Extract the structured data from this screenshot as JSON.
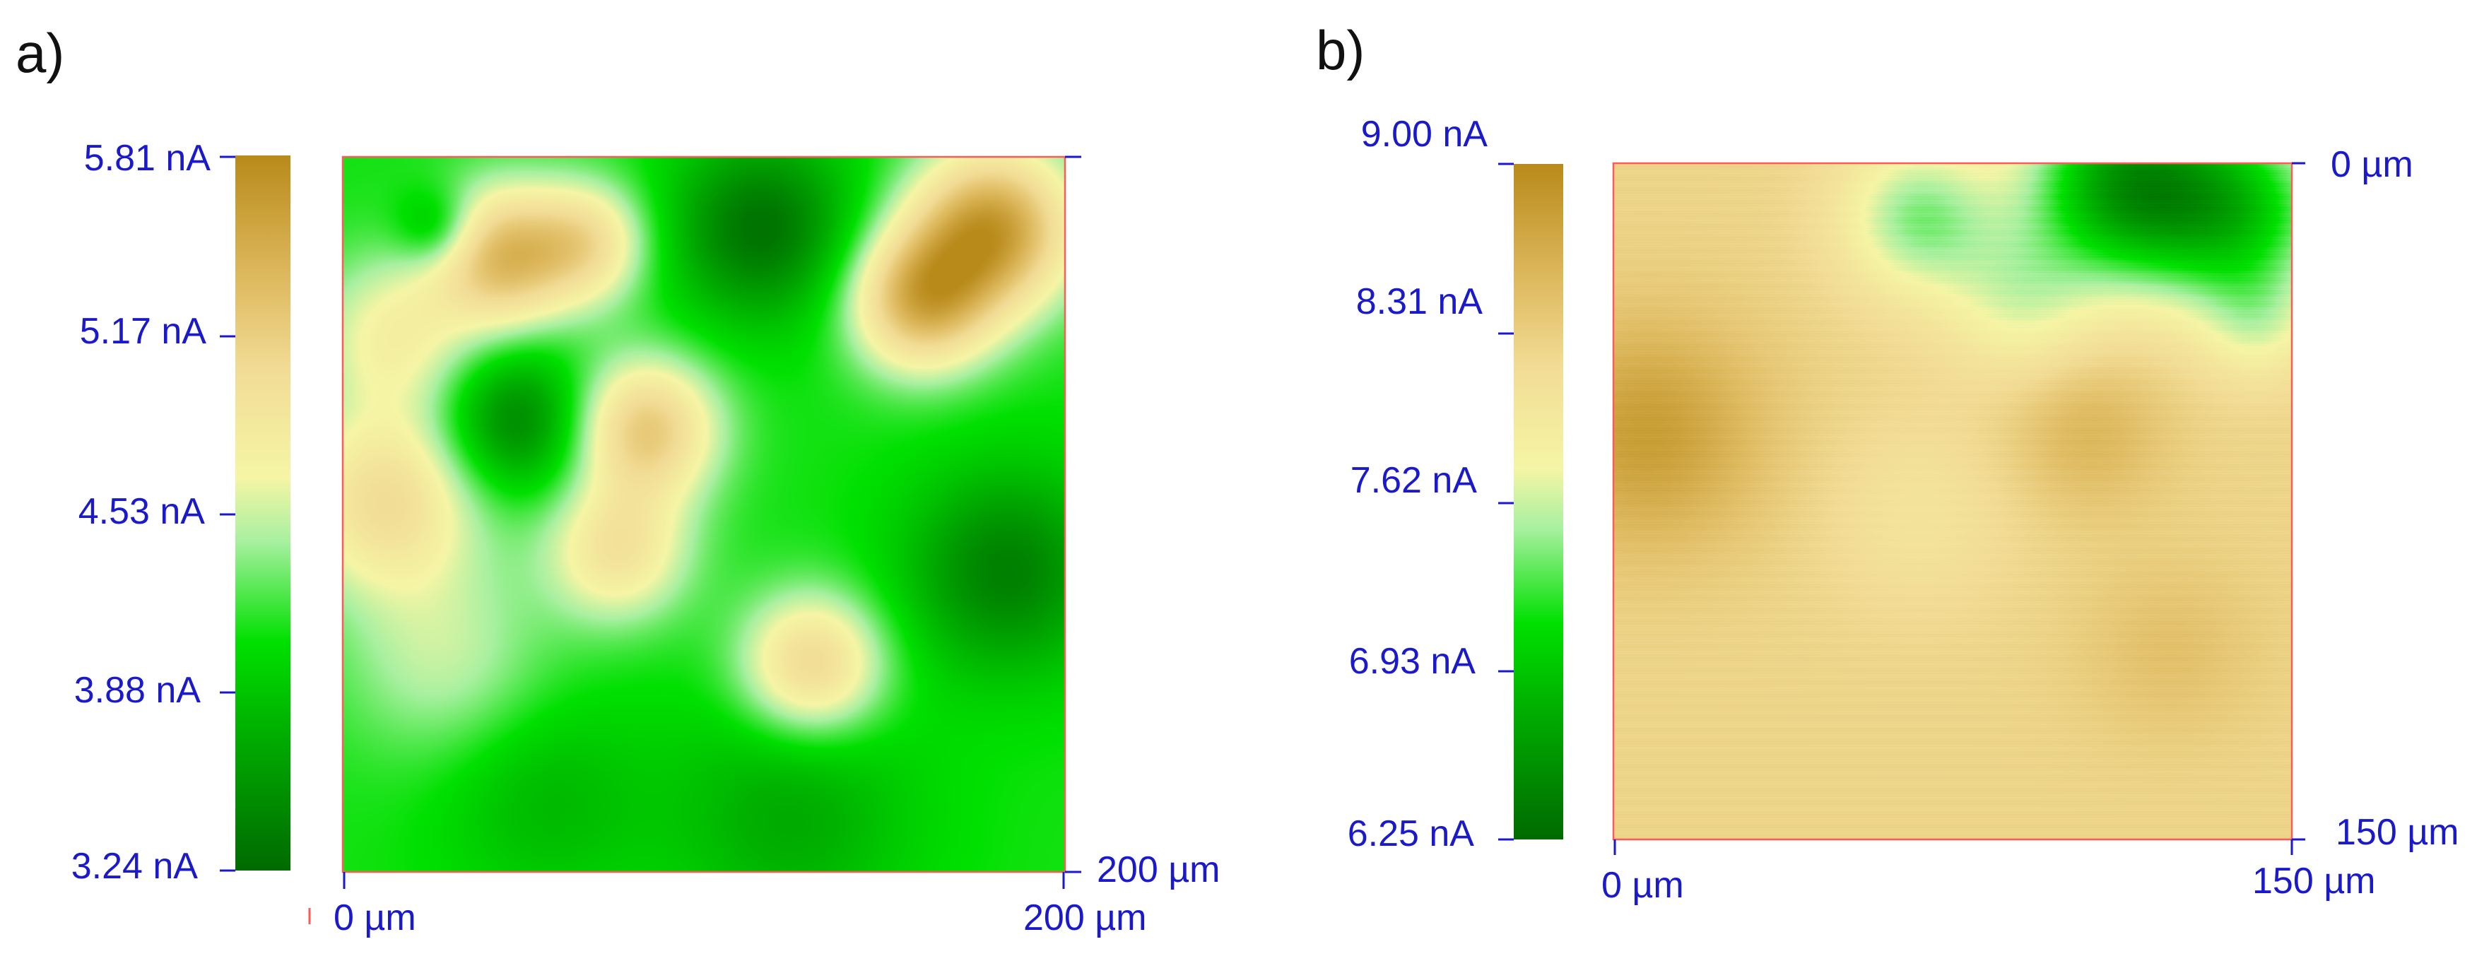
{
  "chart_data": [
    {
      "type": "heatmap",
      "panel_label": "a)",
      "colorbar": {
        "min": 3.24,
        "max": 5.81,
        "unit": "nA",
        "tick_labels": [
          "5.81 nA",
          "5.17 nA",
          "4.53 nA",
          "3.88 nA",
          "3.24 nA"
        ],
        "tick_values": [
          5.81,
          5.17,
          4.53,
          3.88,
          3.24
        ]
      },
      "x_axis": {
        "range_um": [
          0,
          200
        ],
        "tick_labels": [
          "0 µm",
          "200 µm"
        ]
      },
      "y_axis": {
        "range_um": [
          0,
          200
        ],
        "tick_labels": [
          "200 µm"
        ]
      },
      "field": {
        "base": 4.1,
        "features": [
          {
            "x": 0.22,
            "y": 0.14,
            "amp": 1.2,
            "s": 0.07
          },
          {
            "x": 0.13,
            "y": 0.1,
            "amp": -0.5,
            "s": 0.04
          },
          {
            "x": 0.34,
            "y": 0.12,
            "amp": 0.8,
            "s": 0.06
          },
          {
            "x": 0.42,
            "y": 0.38,
            "amp": 1.1,
            "s": 0.07
          },
          {
            "x": 0.38,
            "y": 0.55,
            "amp": 0.8,
            "s": 0.07
          },
          {
            "x": 0.9,
            "y": 0.1,
            "amp": 1.5,
            "s": 0.08
          },
          {
            "x": 0.8,
            "y": 0.2,
            "amp": 1.3,
            "s": 0.07
          },
          {
            "x": 0.06,
            "y": 0.48,
            "amp": 0.9,
            "s": 0.09
          },
          {
            "x": 0.07,
            "y": 0.25,
            "amp": 0.6,
            "s": 0.08
          },
          {
            "x": 0.14,
            "y": 0.7,
            "amp": 0.4,
            "s": 0.1
          },
          {
            "x": 0.65,
            "y": 0.71,
            "amp": 1.0,
            "s": 0.07
          },
          {
            "x": 0.58,
            "y": 0.1,
            "amp": -0.8,
            "s": 0.09
          },
          {
            "x": 0.24,
            "y": 0.37,
            "amp": -0.7,
            "s": 0.07
          },
          {
            "x": 0.92,
            "y": 0.58,
            "amp": -0.7,
            "s": 0.1
          },
          {
            "x": 0.62,
            "y": 0.92,
            "amp": -0.4,
            "s": 0.12
          },
          {
            "x": 0.28,
            "y": 0.9,
            "amp": -0.3,
            "s": 0.1
          }
        ]
      }
    },
    {
      "type": "heatmap",
      "panel_label": "b)",
      "colorbar": {
        "min": 6.25,
        "max": 9.0,
        "unit": "nA",
        "tick_labels": [
          "9.00 nA",
          "8.31 nA",
          "7.62 nA",
          "6.93 nA",
          "6.25 nA"
        ],
        "tick_values": [
          9.0,
          8.31,
          7.62,
          6.93,
          6.25
        ]
      },
      "x_axis": {
        "range_um": [
          0,
          150
        ],
        "tick_labels": [
          "0 µm",
          "150 µm"
        ]
      },
      "y_axis": {
        "range_um": [
          0,
          150
        ],
        "tick_labels": [
          "0 µm",
          "150 µm"
        ]
      },
      "field": {
        "base": 8.25,
        "features": [
          {
            "x": 0.05,
            "y": 0.4,
            "amp": 0.55,
            "s": 0.12
          },
          {
            "x": 0.7,
            "y": 0.4,
            "amp": 0.3,
            "s": 0.08
          },
          {
            "x": 0.82,
            "y": 0.72,
            "amp": 0.2,
            "s": 0.09
          },
          {
            "x": 0.45,
            "y": 0.52,
            "amp": -0.2,
            "s": 0.1
          },
          {
            "x": 0.75,
            "y": 0.03,
            "amp": -1.5,
            "s": 0.1
          },
          {
            "x": 0.92,
            "y": 0.07,
            "amp": -1.2,
            "s": 0.1
          },
          {
            "x": 0.45,
            "y": 0.08,
            "amp": -0.8,
            "s": 0.08
          },
          {
            "x": 0.6,
            "y": 0.2,
            "amp": -0.5,
            "s": 0.08
          },
          {
            "x": 0.95,
            "y": 0.24,
            "amp": -0.4,
            "s": 0.06
          }
        ]
      }
    }
  ]
}
